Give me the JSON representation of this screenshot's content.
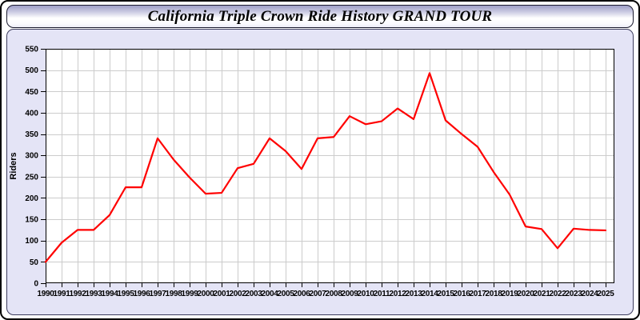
{
  "window": {
    "title": "California Triple Crown Ride History GRAND TOUR"
  },
  "colors": {
    "line": "#ff0000",
    "plot_bg": "#ffffff",
    "grid": "#cccccc",
    "axis_frame": "#000000",
    "panel_bg": "#e4e4f6",
    "text": "#000000"
  },
  "chart_data": {
    "type": "line",
    "title": "California Triple Crown Ride History GRAND TOUR",
    "xlabel": "",
    "ylabel": "Riders",
    "x": [
      1990,
      1991,
      1992,
      1993,
      1994,
      1995,
      1996,
      1997,
      1998,
      1999,
      2000,
      2001,
      2002,
      2003,
      2004,
      2005,
      2006,
      2007,
      2008,
      2009,
      2010,
      2011,
      2012,
      2013,
      2014,
      2015,
      2016,
      2017,
      2018,
      2019,
      2020,
      2021,
      2022,
      2023,
      2024,
      2025
    ],
    "series": [
      {
        "name": "Riders",
        "color": "#ff0000",
        "values": [
          50,
          95,
          125,
          125,
          160,
          225,
          225,
          340,
          290,
          248,
          210,
          212,
          270,
          280,
          340,
          310,
          268,
          340,
          343,
          392,
          373,
          380,
          410,
          385,
          493,
          382,
          350,
          320,
          261,
          208,
          133,
          127,
          82,
          128,
          125,
          124
        ]
      }
    ],
    "ylim": [
      0,
      550
    ],
    "ytick_step": 50,
    "grid": true,
    "legend": false
  }
}
